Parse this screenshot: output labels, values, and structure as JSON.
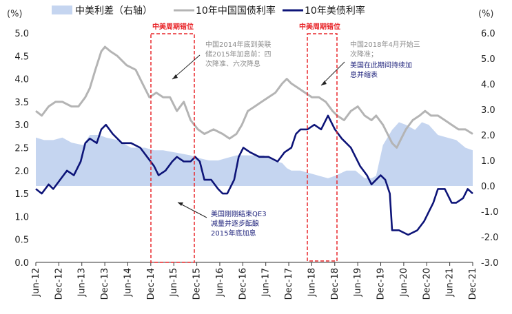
{
  "chart_data": {
    "type": "area+line",
    "left_axis_unit": "(%)",
    "right_axis_unit": "(%)",
    "ylim_left": [
      0.0,
      5.0
    ],
    "ylim_right": [
      -3.0,
      6.0
    ],
    "left_ticks": [
      "5.0",
      "4.5",
      "4.0",
      "3.5",
      "3.0",
      "2.5",
      "2.0",
      "1.5",
      "1.0",
      "0.5",
      "0.0"
    ],
    "right_ticks": [
      "6.0",
      "5.0",
      "4.0",
      "3.0",
      "2.0",
      "1.0",
      "0.0",
      "-1.0",
      "-2.0",
      "-3.0"
    ],
    "x_ticks": [
      "Jun-12",
      "Dec-12",
      "Jun-13",
      "Dec-13",
      "Jun-14",
      "Dec-14",
      "Jun-15",
      "Dec-15",
      "Jun-16",
      "Dec-16",
      "Jun-17",
      "Dec-17",
      "Jun-18",
      "Dec-18",
      "Jun-19",
      "Dec-19",
      "Jun-20",
      "Dec-20",
      "Jun-21",
      "Dec-21"
    ],
    "x_range": [
      2012.42,
      2021.96
    ],
    "series": [
      {
        "name": "中美利差（右轴）",
        "axis": "right",
        "kind": "area",
        "color": "#c5d5f0",
        "x": [
          2012.42,
          2012.6,
          2012.8,
          2013.0,
          2013.2,
          2013.45,
          2013.6,
          2013.8,
          2013.95,
          2014.2,
          2014.5,
          2014.8,
          2015.0,
          2015.2,
          2015.5,
          2015.8,
          2015.96,
          2016.2,
          2016.4,
          2016.6,
          2016.8,
          2017.0,
          2017.2,
          2017.4,
          2017.6,
          2017.8,
          2017.9,
          2018.0,
          2018.2,
          2018.4,
          2018.6,
          2018.8,
          2018.96,
          2019.2,
          2019.4,
          2019.6,
          2019.75,
          2019.85,
          2020.0,
          2020.2,
          2020.35,
          2020.5,
          2020.7,
          2020.85,
          2021.0,
          2021.2,
          2021.4,
          2021.6,
          2021.8,
          2021.96
        ],
        "values": [
          1.9,
          1.8,
          1.8,
          1.9,
          1.7,
          1.6,
          2.0,
          2.0,
          1.9,
          1.8,
          1.5,
          1.5,
          1.4,
          1.4,
          1.3,
          1.2,
          1.1,
          1.0,
          1.0,
          1.1,
          1.2,
          1.2,
          1.2,
          1.2,
          1.0,
          0.9,
          0.7,
          0.6,
          0.6,
          0.5,
          0.4,
          0.3,
          0.4,
          0.6,
          0.6,
          0.3,
          0.3,
          0.4,
          1.6,
          2.2,
          2.5,
          2.4,
          2.2,
          2.5,
          2.4,
          2.0,
          1.9,
          1.8,
          1.5,
          1.4
        ]
      },
      {
        "name": "10年中国国债利率",
        "axis": "left",
        "kind": "line",
        "color": "#b4b4b4",
        "x": [
          2012.42,
          2012.55,
          2012.7,
          2012.85,
          2013.0,
          2013.2,
          2013.35,
          2013.5,
          2013.6,
          2013.72,
          2013.85,
          2013.93,
          2014.05,
          2014.2,
          2014.4,
          2014.6,
          2014.75,
          2014.9,
          2015.05,
          2015.2,
          2015.35,
          2015.5,
          2015.65,
          2015.8,
          2015.96,
          2016.1,
          2016.3,
          2016.5,
          2016.65,
          2016.8,
          2016.92,
          2017.05,
          2017.2,
          2017.35,
          2017.5,
          2017.65,
          2017.8,
          2017.9,
          2018.0,
          2018.15,
          2018.3,
          2018.45,
          2018.6,
          2018.75,
          2018.9,
          2019.0,
          2019.15,
          2019.3,
          2019.45,
          2019.6,
          2019.75,
          2019.85,
          2020.0,
          2020.1,
          2020.2,
          2020.3,
          2020.4,
          2020.5,
          2020.65,
          2020.8,
          2020.92,
          2021.05,
          2021.2,
          2021.35,
          2021.5,
          2021.65,
          2021.8,
          2021.96
        ],
        "values": [
          3.3,
          3.2,
          3.4,
          3.5,
          3.5,
          3.4,
          3.4,
          3.6,
          3.8,
          4.2,
          4.6,
          4.7,
          4.6,
          4.5,
          4.3,
          4.2,
          3.9,
          3.6,
          3.7,
          3.6,
          3.6,
          3.3,
          3.5,
          3.1,
          2.9,
          2.8,
          2.9,
          2.8,
          2.7,
          2.8,
          3.0,
          3.3,
          3.4,
          3.5,
          3.6,
          3.7,
          3.9,
          4.0,
          3.9,
          3.8,
          3.7,
          3.6,
          3.6,
          3.5,
          3.3,
          3.2,
          3.1,
          3.3,
          3.4,
          3.2,
          3.1,
          3.2,
          3.0,
          2.8,
          2.6,
          2.5,
          2.7,
          2.9,
          3.1,
          3.2,
          3.3,
          3.2,
          3.2,
          3.1,
          3.0,
          2.9,
          2.9,
          2.8
        ]
      },
      {
        "name": "10年美债利率",
        "axis": "left",
        "kind": "line",
        "color": "#0d1478",
        "x": [
          2012.42,
          2012.55,
          2012.7,
          2012.8,
          2012.95,
          2013.1,
          2013.25,
          2013.4,
          2013.5,
          2013.6,
          2013.75,
          2013.85,
          2013.95,
          2014.1,
          2014.3,
          2014.5,
          2014.7,
          2014.85,
          2015.0,
          2015.1,
          2015.25,
          2015.4,
          2015.5,
          2015.65,
          2015.8,
          2015.9,
          2016.0,
          2016.1,
          2016.25,
          2016.4,
          2016.5,
          2016.6,
          2016.75,
          2016.85,
          2016.95,
          2017.1,
          2017.3,
          2017.5,
          2017.7,
          2017.85,
          2018.0,
          2018.1,
          2018.2,
          2018.35,
          2018.5,
          2018.65,
          2018.8,
          2018.95,
          2019.1,
          2019.3,
          2019.5,
          2019.65,
          2019.75,
          2019.85,
          2019.95,
          2020.05,
          2020.15,
          2020.2,
          2020.35,
          2020.55,
          2020.75,
          2020.9,
          2021.0,
          2021.1,
          2021.2,
          2021.35,
          2021.5,
          2021.6,
          2021.75,
          2021.85,
          2021.96
        ],
        "values": [
          1.6,
          1.5,
          1.7,
          1.6,
          1.8,
          2.0,
          1.9,
          2.2,
          2.6,
          2.7,
          2.6,
          2.9,
          3.0,
          2.8,
          2.6,
          2.6,
          2.5,
          2.3,
          2.1,
          1.9,
          2.0,
          2.2,
          2.3,
          2.2,
          2.2,
          2.3,
          2.2,
          1.8,
          1.8,
          1.6,
          1.5,
          1.5,
          1.8,
          2.3,
          2.5,
          2.4,
          2.3,
          2.3,
          2.2,
          2.4,
          2.5,
          2.8,
          2.9,
          2.9,
          3.0,
          2.9,
          3.2,
          2.9,
          2.7,
          2.5,
          2.1,
          1.9,
          1.7,
          1.8,
          1.9,
          1.8,
          1.5,
          0.7,
          0.7,
          0.6,
          0.7,
          0.9,
          1.1,
          1.3,
          1.6,
          1.6,
          1.3,
          1.3,
          1.4,
          1.6,
          1.5
        ]
      }
    ],
    "highlight_boxes": [
      {
        "label": "中美周期错位",
        "from": "Dec-14",
        "to": "Dec-15"
      },
      {
        "label": "中美周期错位",
        "from": "Jun-18",
        "to": "Dec-18"
      }
    ],
    "annotations": [
      {
        "lines": [
          "中国2014年底到美联",
          "储2015年加息前：四",
          "次降准、六次降息"
        ],
        "color": "#8c8c8c"
      },
      {
        "lines": [
          "中国2018年4月开始三",
          "次降准；"
        ],
        "color": "#8c8c8c"
      },
      {
        "lines": [
          "美国在此期间持续加",
          "息并缩表"
        ],
        "color": "#1b1f7a"
      },
      {
        "lines": [
          "美国刚刚结束QE3",
          "减量并逐步酝酿",
          "2015年底加息"
        ],
        "color": "#1b1f7a"
      }
    ]
  }
}
